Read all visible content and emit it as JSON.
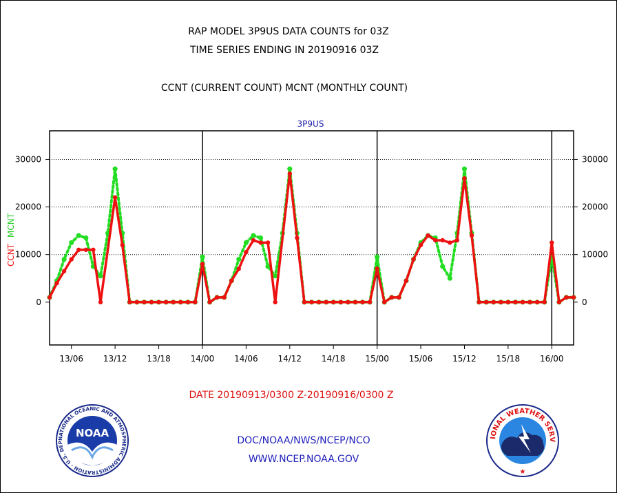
{
  "header": {
    "title_line1": "RAP MODEL 3P9US DATA COUNTS for 03Z",
    "title_line2": "TIME SERIES ENDING IN 20190916 03Z",
    "subtitle": "CCNT (CURRENT COUNT) MCNT (MONTHLY COUNT)"
  },
  "footer": {
    "date_range": "DATE 20190913/0300 Z-20190916/0300 Z",
    "org_line": "DOC/NOAA/NWS/NCEP/NCO",
    "url": "WWW.NCEP.NOAA.GOV"
  },
  "logos": {
    "noaa_text": "NOAA",
    "noaa_ring": "NATIONAL OCEANIC AND ATMOSPHERIC ADMINISTRATION · U.S. DEPARTMENT OF COMMERCE ·",
    "nws_ring": "NATIONAL WEATHER SERVICE"
  },
  "chart_data": {
    "type": "line",
    "title": "3P9US",
    "xlabel": "",
    "ylabel_ccnt": "CCNT",
    "ylabel_mcnt": "MCNT",
    "ylim": [
      -9000,
      36000
    ],
    "yticks": [
      0,
      10000,
      20000,
      30000
    ],
    "xlim": [
      0,
      72
    ],
    "x_unit": "hours since 13/03Z",
    "xticks": [
      {
        "x": 3,
        "label": "13/06"
      },
      {
        "x": 9,
        "label": "13/12"
      },
      {
        "x": 15,
        "label": "13/18"
      },
      {
        "x": 21,
        "label": "14/00"
      },
      {
        "x": 27,
        "label": "14/06"
      },
      {
        "x": 33,
        "label": "14/12"
      },
      {
        "x": 39,
        "label": "14/18"
      },
      {
        "x": 45,
        "label": "15/00"
      },
      {
        "x": 51,
        "label": "15/06"
      },
      {
        "x": 57,
        "label": "15/12"
      },
      {
        "x": 63,
        "label": "15/18"
      },
      {
        "x": 69,
        "label": "16/00"
      }
    ],
    "day_boundaries": [
      21,
      45,
      69
    ],
    "grid": "horizontal dotted",
    "colors": {
      "ccnt": "#ee1111",
      "mcnt": "#22dd22",
      "axis_title": "#2222aa",
      "footer_red": "#dd1111",
      "footer_blue": "#2222bb"
    },
    "series": [
      {
        "name": "CCNT",
        "style": "solid",
        "points": [
          [
            0,
            1000
          ],
          [
            1,
            4000
          ],
          [
            2,
            6500
          ],
          [
            3,
            9000
          ],
          [
            4,
            11000
          ],
          [
            5,
            11000
          ],
          [
            6,
            11000
          ],
          [
            7,
            0
          ],
          [
            9,
            22000
          ],
          [
            10,
            12000
          ],
          [
            11,
            0
          ],
          [
            12,
            0
          ],
          [
            13,
            0
          ],
          [
            14,
            0
          ],
          [
            15,
            0
          ],
          [
            16,
            0
          ],
          [
            17,
            0
          ],
          [
            18,
            0
          ],
          [
            19,
            0
          ],
          [
            20,
            0
          ],
          [
            21,
            8000
          ],
          [
            22,
            0
          ],
          [
            23,
            1000
          ],
          [
            24,
            1000
          ],
          [
            25,
            4500
          ],
          [
            26,
            7000
          ],
          [
            27,
            10500
          ],
          [
            28,
            13000
          ],
          [
            29,
            12500
          ],
          [
            30,
            12500
          ],
          [
            31,
            0
          ],
          [
            33,
            27000
          ],
          [
            34,
            13500
          ],
          [
            35,
            0
          ],
          [
            36,
            0
          ],
          [
            37,
            0
          ],
          [
            38,
            0
          ],
          [
            39,
            0
          ],
          [
            40,
            0
          ],
          [
            41,
            0
          ],
          [
            42,
            0
          ],
          [
            43,
            0
          ],
          [
            44,
            0
          ],
          [
            45,
            7000
          ],
          [
            46,
            0
          ],
          [
            47,
            1000
          ],
          [
            48,
            1000
          ],
          [
            49,
            4500
          ],
          [
            50,
            9000
          ],
          [
            51,
            12000
          ],
          [
            52,
            14000
          ],
          [
            53,
            13000
          ],
          [
            54,
            13000
          ],
          [
            55,
            12500
          ],
          [
            56,
            13000
          ],
          [
            57,
            26000
          ],
          [
            58,
            14000
          ],
          [
            59,
            0
          ],
          [
            60,
            0
          ],
          [
            61,
            0
          ],
          [
            62,
            0
          ],
          [
            63,
            0
          ],
          [
            64,
            0
          ],
          [
            65,
            0
          ],
          [
            66,
            0
          ],
          [
            67,
            0
          ],
          [
            68,
            0
          ],
          [
            69,
            12500
          ],
          [
            70,
            0
          ],
          [
            71,
            1000
          ],
          [
            72,
            1000
          ]
        ]
      },
      {
        "name": "MCNT",
        "style": "dotted",
        "points": [
          [
            0,
            1000
          ],
          [
            1,
            4500
          ],
          [
            2,
            9000
          ],
          [
            3,
            12500
          ],
          [
            4,
            14000
          ],
          [
            5,
            13500
          ],
          [
            6,
            7500
          ],
          [
            7,
            5500
          ],
          [
            8,
            14500
          ],
          [
            9,
            28000
          ],
          [
            10,
            14500
          ],
          [
            11,
            0
          ],
          [
            12,
            0
          ],
          [
            13,
            0
          ],
          [
            14,
            0
          ],
          [
            15,
            0
          ],
          [
            16,
            0
          ],
          [
            17,
            0
          ],
          [
            18,
            0
          ],
          [
            19,
            0
          ],
          [
            20,
            0
          ],
          [
            21,
            9500
          ],
          [
            22,
            0
          ],
          [
            23,
            1000
          ],
          [
            24,
            1000
          ],
          [
            25,
            4500
          ],
          [
            26,
            9000
          ],
          [
            27,
            12500
          ],
          [
            28,
            14000
          ],
          [
            29,
            13500
          ],
          [
            30,
            7500
          ],
          [
            31,
            5500
          ],
          [
            32,
            14500
          ],
          [
            33,
            28000
          ],
          [
            34,
            14500
          ],
          [
            35,
            0
          ],
          [
            36,
            0
          ],
          [
            37,
            0
          ],
          [
            38,
            0
          ],
          [
            39,
            0
          ],
          [
            40,
            0
          ],
          [
            41,
            0
          ],
          [
            42,
            0
          ],
          [
            43,
            0
          ],
          [
            44,
            0
          ],
          [
            45,
            9500
          ],
          [
            46,
            0
          ],
          [
            47,
            1000
          ],
          [
            48,
            1000
          ],
          [
            49,
            4500
          ],
          [
            50,
            9000
          ],
          [
            51,
            12500
          ],
          [
            52,
            14000
          ],
          [
            53,
            13500
          ],
          [
            54,
            7500
          ],
          [
            55,
            5000
          ],
          [
            56,
            14500
          ],
          [
            57,
            28000
          ],
          [
            58,
            14500
          ],
          [
            59,
            0
          ],
          [
            60,
            0
          ],
          [
            61,
            0
          ],
          [
            62,
            0
          ],
          [
            63,
            0
          ],
          [
            64,
            0
          ],
          [
            65,
            0
          ],
          [
            66,
            0
          ],
          [
            67,
            0
          ],
          [
            68,
            0
          ],
          [
            69,
            9500
          ],
          [
            70,
            0
          ],
          [
            71,
            1000
          ],
          [
            72,
            1000
          ]
        ]
      }
    ]
  }
}
